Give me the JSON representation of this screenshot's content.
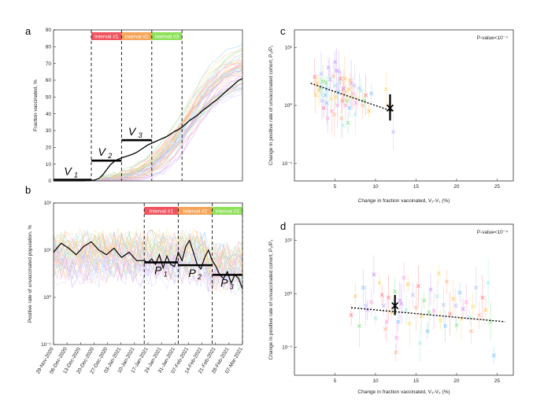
{
  "colors": {
    "interval1": "#f0545f",
    "interval2": "#f5a55a",
    "interval3": "#8fe05a",
    "divider": "#111111",
    "bold": "#000000",
    "trend": "#000000"
  },
  "chart_data": [
    {
      "panel": "a",
      "type": "line",
      "ylabel": "Fraction vaccinated, %",
      "ylim": [
        0,
        90
      ],
      "yticks": [
        "0",
        "10",
        "20",
        "30",
        "40",
        "50",
        "60",
        "70",
        "80",
        "90"
      ],
      "intervals": [
        {
          "label": "Interval #1",
          "start": 10,
          "end": 18
        },
        {
          "label": "Interval #2",
          "start": 18,
          "end": 26
        },
        {
          "label": "Interval #3",
          "start": 26,
          "end": 34
        }
      ],
      "levels": [
        {
          "label": "V",
          "sub": "1",
          "value": 0.7
        },
        {
          "label": "V",
          "sub": "2",
          "value": 12.1
        },
        {
          "label": "V",
          "sub": "3",
          "value": 24.3
        }
      ],
      "highlight_series": {
        "x": [
          0,
          2,
          4,
          6,
          8,
          10,
          11,
          12,
          13,
          14,
          15,
          16,
          17,
          18,
          19,
          20,
          21,
          22,
          23,
          24,
          25,
          26,
          27,
          28,
          29,
          30,
          31,
          32,
          33,
          34,
          35,
          36,
          37,
          38,
          39,
          40,
          41,
          42,
          43,
          44,
          45,
          46,
          47,
          48,
          49,
          50
        ],
        "y": [
          0,
          0,
          0,
          0,
          0,
          0.2,
          0.6,
          1.5,
          3.5,
          6.5,
          9.5,
          11.5,
          12.8,
          13.8,
          14.5,
          15.2,
          16,
          17,
          18.5,
          20,
          21.5,
          22.5,
          23.5,
          24.5,
          25.5,
          26.5,
          28,
          29.5,
          30.5,
          32,
          34,
          36,
          37.5,
          39,
          41,
          43,
          44.5,
          46.5,
          48,
          50,
          52,
          54,
          56,
          58,
          60,
          61
        ]
      }
    },
    {
      "panel": "b",
      "type": "line",
      "ylabel": "Positive rate of unvaccinated population, %",
      "yscale": "log",
      "ylim": [
        0.1,
        100
      ],
      "yticks": [
        "10⁻¹",
        "10⁰",
        "10¹",
        "10²"
      ],
      "x_tick_labels": [
        "29-Nov-2020",
        "06-Dec-2020",
        "13-Dec-2020",
        "20-Dec-2020",
        "27-Dec-2020",
        "03-Jan-2021",
        "10-Jan-2021",
        "17-Jan-2021",
        "24-Jan-2021",
        "31-Jan-2021",
        "07-Feb-2021",
        "14-Feb-2021",
        "21-Feb-2021",
        "28-Feb-2021",
        "07-Mar-2021"
      ],
      "intervals": [
        {
          "label": "Interval #1",
          "start": 24,
          "end": 33
        },
        {
          "label": "Interval #2",
          "start": 33,
          "end": 42
        },
        {
          "label": "Interval #3",
          "start": 42,
          "end": 50
        }
      ],
      "levels": [
        {
          "label": "P",
          "sub": "1",
          "value": 5.5
        },
        {
          "label": "P",
          "sub": "2",
          "value": 4.8
        },
        {
          "label": "P",
          "sub": "3",
          "value": 3.0
        }
      ],
      "highlight_series": {
        "x": [
          0,
          2,
          4,
          6,
          8,
          10,
          12,
          14,
          16,
          18,
          20,
          22,
          24,
          25,
          26,
          27,
          28,
          29,
          30,
          31,
          32,
          33,
          34,
          35,
          36,
          37,
          38,
          39,
          40,
          41,
          42,
          43,
          44,
          45,
          46,
          47,
          48,
          49,
          50
        ],
        "y": [
          9,
          14,
          11,
          8,
          12,
          15,
          10,
          8,
          11,
          7,
          9,
          6,
          6,
          5.5,
          6.5,
          5,
          8,
          4.2,
          7.5,
          5,
          4.5,
          9,
          6,
          12,
          16,
          9,
          5,
          4,
          7,
          10,
          6,
          4.5,
          3,
          2.5,
          3.5,
          2,
          3,
          2.5,
          1.5
        ]
      }
    },
    {
      "panel": "c",
      "type": "scatter",
      "xlabel": "Change in fraction vaccinated, V₂-V₁ (%)",
      "ylabel": "Change in positive rate of unvaccinated cohort, P₂/P₁",
      "yscale": "log",
      "xlim": [
        0,
        27
      ],
      "ylim": [
        0.05,
        20
      ],
      "xticks": [
        "5",
        "10",
        "15",
        "20",
        "25"
      ],
      "yticks": [
        "10⁻¹",
        "10⁰",
        "10¹"
      ],
      "annotation": "P-value<10⁻⁴",
      "points": [
        [
          2.5,
          3.1
        ],
        [
          3.0,
          1.8
        ],
        [
          3.5,
          2.6
        ],
        [
          4.0,
          1.1
        ],
        [
          4.2,
          4.5
        ],
        [
          4.6,
          0.8
        ],
        [
          5.0,
          2.2
        ],
        [
          5.1,
          1.4
        ],
        [
          5.5,
          3.8
        ],
        [
          5.8,
          0.6
        ],
        [
          6.0,
          1.9
        ],
        [
          6.2,
          2.9
        ],
        [
          6.5,
          1.2
        ],
        [
          6.8,
          0.9
        ],
        [
          7.0,
          2.4
        ],
        [
          7.2,
          1.6
        ],
        [
          7.5,
          0.7
        ],
        [
          7.8,
          1.3
        ],
        [
          8.0,
          2.0
        ],
        [
          8.4,
          1.0
        ],
        [
          8.8,
          1.5
        ],
        [
          9.2,
          0.8
        ],
        [
          3.2,
          2.0
        ],
        [
          3.8,
          1.5
        ],
        [
          4.4,
          2.8
        ],
        [
          5.3,
          1.0
        ],
        [
          5.6,
          2.5
        ],
        [
          6.4,
          1.7
        ],
        [
          7.4,
          2.2
        ],
        [
          4.8,
          3.2
        ],
        [
          3.6,
          0.9
        ],
        [
          2.8,
          2.4
        ],
        [
          6.6,
          0.5
        ],
        [
          4.0,
          1.9
        ],
        [
          5.2,
          4.0
        ],
        [
          7.6,
          1.1
        ],
        [
          8.2,
          1.8
        ],
        [
          4.5,
          1.3
        ],
        [
          3.3,
          3.5
        ],
        [
          6.9,
          2.7
        ],
        [
          5.9,
          1.2
        ],
        [
          2.6,
          1.5
        ],
        [
          3.9,
          2.5
        ],
        [
          5.4,
          1.7
        ],
        [
          6.1,
          2.0
        ],
        [
          6.3,
          1.0
        ],
        [
          4.3,
          3.0
        ],
        [
          7.1,
          1.4
        ],
        [
          3.4,
          1.2
        ],
        [
          4.9,
          0.7
        ],
        [
          5.7,
          2.9
        ],
        [
          6.7,
          1.9
        ],
        [
          8.6,
          1.2
        ],
        [
          9.5,
          1.6
        ],
        [
          5.0,
          5.6
        ],
        [
          4.1,
          0.6
        ],
        [
          6.0,
          0.45
        ],
        [
          11.3,
          1.9
        ],
        [
          12.2,
          0.35
        ],
        [
          11.7,
          1.0
        ]
      ],
      "mean_point": {
        "x": 11.8,
        "y": 0.9,
        "ylow": 0.55,
        "yhigh": 1.55
      },
      "trend": {
        "x": [
          2,
          12
        ],
        "y": [
          2.4,
          0.8
        ]
      }
    },
    {
      "panel": "d",
      "type": "scatter",
      "xlabel": "Change in fraction vaccinated, V₃-V₂ (%)",
      "ylabel": "Change in positive rate of unvaccinated cohort, P₃/P₂",
      "yscale": "log",
      "xlim": [
        0,
        27
      ],
      "ylim": [
        0.03,
        20
      ],
      "xticks": [
        "5",
        "10",
        "15",
        "20",
        "25"
      ],
      "yticks": [
        "10⁻¹",
        "10⁰",
        "10¹"
      ],
      "annotation": "P-value<10⁻⁴",
      "points": [
        [
          7.0,
          0.4
        ],
        [
          7.5,
          0.9
        ],
        [
          8.0,
          0.25
        ],
        [
          8.5,
          1.3
        ],
        [
          9.0,
          0.5
        ],
        [
          9.5,
          0.7
        ],
        [
          10.0,
          0.35
        ],
        [
          10.5,
          1.6
        ],
        [
          11.0,
          0.6
        ],
        [
          11.2,
          0.22
        ],
        [
          11.6,
          0.85
        ],
        [
          12.0,
          0.45
        ],
        [
          12.4,
          1.1
        ],
        [
          12.8,
          0.3
        ],
        [
          13.2,
          0.65
        ],
        [
          13.5,
          2.0
        ],
        [
          13.8,
          0.5
        ],
        [
          14.2,
          0.28
        ],
        [
          14.6,
          0.95
        ],
        [
          15.0,
          0.55
        ],
        [
          15.3,
          1.4
        ],
        [
          15.7,
          0.38
        ],
        [
          16.0,
          0.75
        ],
        [
          16.4,
          0.2
        ],
        [
          16.8,
          1.2
        ],
        [
          17.2,
          0.48
        ],
        [
          17.6,
          0.9
        ],
        [
          18.0,
          0.32
        ],
        [
          18.4,
          0.62
        ],
        [
          18.8,
          1.7
        ],
        [
          19.2,
          0.42
        ],
        [
          19.6,
          0.8
        ],
        [
          20.0,
          0.26
        ],
        [
          20.4,
          1.05
        ],
        [
          20.8,
          0.52
        ],
        [
          21.2,
          0.7
        ],
        [
          21.6,
          0.36
        ],
        [
          22.0,
          0.58
        ],
        [
          22.4,
          1.3
        ],
        [
          22.8,
          0.4
        ],
        [
          23.2,
          0.85
        ],
        [
          23.6,
          0.5
        ],
        [
          24.2,
          0.3
        ],
        [
          24.6,
          0.07
        ],
        [
          9.8,
          2.3
        ],
        [
          12.6,
          0.15
        ],
        [
          15.5,
          0.12
        ],
        [
          17.8,
          2.4
        ],
        [
          19.9,
          0.6
        ],
        [
          21.8,
          0.2
        ],
        [
          10.8,
          0.95
        ],
        [
          14.0,
          1.5
        ],
        [
          16.6,
          0.45
        ],
        [
          18.6,
          0.25
        ],
        [
          13.0,
          0.75
        ],
        [
          11.4,
          0.3
        ],
        [
          23.9,
          1.6
        ],
        [
          20.6,
          0.34
        ],
        [
          8.8,
          0.6
        ],
        [
          12.5,
          0.08
        ]
      ],
      "mean_point": {
        "x": 12.4,
        "y": 0.6,
        "ylow": 0.4,
        "yhigh": 0.95
      },
      "trend": {
        "x": [
          7,
          26
        ],
        "y": [
          0.55,
          0.3
        ]
      }
    }
  ]
}
